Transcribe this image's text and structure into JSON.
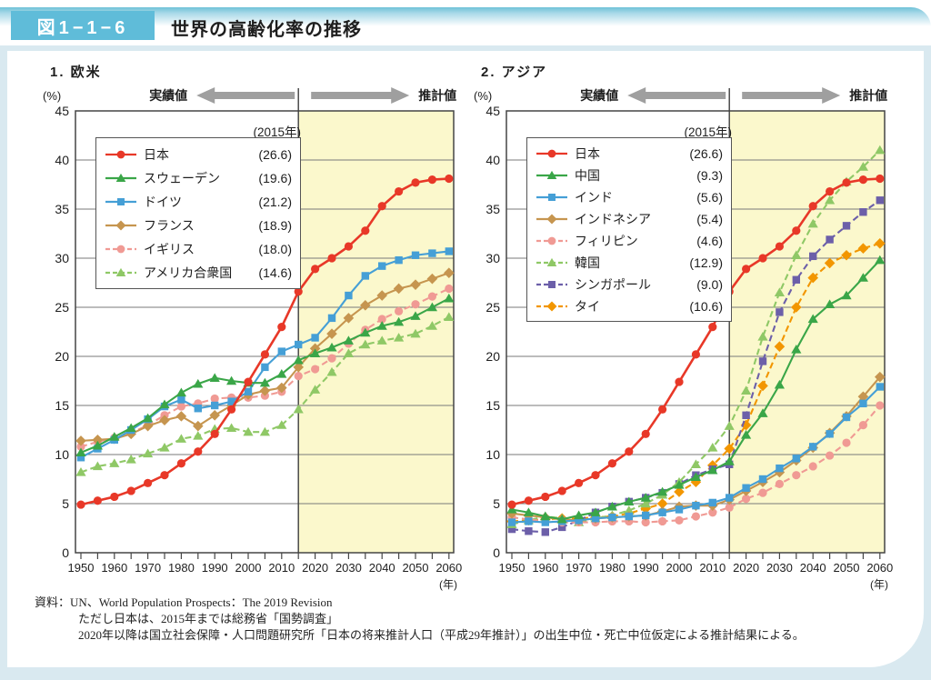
{
  "figure": {
    "label": "図1−1−6",
    "title": "世界の高齢化率の推移"
  },
  "annotations": {
    "actual_label": "実績値",
    "projected_label": "推計値",
    "y_unit": "(%)",
    "x_unit": "(年)",
    "legend_year": "(2015年)"
  },
  "colors": {
    "accent_blue": "#5fbcd9",
    "page_background": "#d9e9f0",
    "projection_fill": "#fbf8cc",
    "gridline": "#7a7a7a",
    "plot_border": "#454545",
    "arrow": "#9f9f9f"
  },
  "source": {
    "lines": [
      "資料：UN、World Population Prospects：The 2019 Revision",
      "ただし日本は、2015年までは総務省「国勢調査」",
      "2020年以降は国立社会保障・人口問題研究所「日本の将来推計人口（平成29年推計）」の出生中位・死亡中位仮定による推計結果による。"
    ]
  },
  "chart_data": [
    {
      "type": "line",
      "title": "1. 欧米",
      "x": [
        1950,
        1955,
        1960,
        1965,
        1970,
        1975,
        1980,
        1985,
        1990,
        1995,
        2000,
        2005,
        2010,
        2015,
        2020,
        2025,
        2030,
        2035,
        2040,
        2045,
        2050,
        2055,
        2060
      ],
      "x_tick_labels": [
        "1950",
        "1960",
        "1970",
        "1980",
        "1990",
        "2000",
        "2010",
        "2020",
        "2030",
        "2040",
        "2050",
        "2060"
      ],
      "ylim": [
        0,
        45
      ],
      "y_ticks": [
        0,
        5,
        10,
        15,
        20,
        25,
        30,
        35,
        40,
        45
      ],
      "divider_year": 2015,
      "grid": true,
      "legend_position": "upper-left",
      "series": [
        {
          "name": "日本",
          "value_label": "(26.6)",
          "color": "#e83828",
          "dash": false,
          "marker": "circle",
          "values": [
            4.9,
            5.3,
            5.7,
            6.3,
            7.1,
            7.9,
            9.1,
            10.3,
            12.1,
            14.6,
            17.4,
            20.2,
            23.0,
            26.6,
            28.9,
            30.0,
            31.2,
            32.8,
            35.3,
            36.8,
            37.7,
            38.0,
            38.1
          ]
        },
        {
          "name": "スウェーデン",
          "value_label": "(19.6)",
          "color": "#3aa648",
          "dash": false,
          "marker": "triangle",
          "values": [
            10.2,
            10.9,
            11.8,
            12.7,
            13.7,
            15.1,
            16.3,
            17.2,
            17.8,
            17.5,
            17.3,
            17.3,
            18.2,
            19.6,
            20.3,
            20.9,
            21.6,
            22.4,
            23.1,
            23.5,
            24.1,
            25.0,
            25.9
          ]
        },
        {
          "name": "ドイツ",
          "value_label": "(21.2)",
          "color": "#459fd6",
          "dash": false,
          "marker": "square",
          "values": [
            9.7,
            10.6,
            11.5,
            12.5,
            13.6,
            14.9,
            15.6,
            14.7,
            15.0,
            15.4,
            16.4,
            18.9,
            20.5,
            21.2,
            21.9,
            23.9,
            26.2,
            28.2,
            29.2,
            29.8,
            30.3,
            30.5,
            30.7
          ]
        },
        {
          "name": "フランス",
          "value_label": "(18.9)",
          "color": "#c6954f",
          "dash": false,
          "marker": "diamond",
          "values": [
            11.4,
            11.5,
            11.6,
            12.1,
            12.9,
            13.5,
            13.9,
            12.9,
            14.0,
            15.0,
            16.1,
            16.5,
            16.8,
            18.9,
            20.8,
            22.3,
            23.9,
            25.2,
            26.2,
            26.9,
            27.3,
            27.9,
            28.5
          ]
        },
        {
          "name": "イギリス",
          "value_label": "(18.0)",
          "color": "#f09a94",
          "dash": true,
          "marker": "circle",
          "values": [
            10.8,
            11.3,
            11.7,
            12.2,
            13.0,
            14.0,
            14.9,
            15.2,
            15.7,
            15.8,
            15.8,
            16.0,
            16.4,
            18.0,
            18.7,
            19.8,
            21.3,
            22.7,
            23.8,
            24.6,
            25.3,
            26.1,
            26.9
          ]
        },
        {
          "name": "アメリカ合衆国",
          "value_label": "(14.6)",
          "color": "#8fc866",
          "dash": true,
          "marker": "triangle",
          "values": [
            8.2,
            8.8,
            9.1,
            9.5,
            10.1,
            10.7,
            11.6,
            11.9,
            12.6,
            12.7,
            12.3,
            12.3,
            13.0,
            14.6,
            16.6,
            18.4,
            20.3,
            21.2,
            21.6,
            21.9,
            22.3,
            23.1,
            24.0
          ]
        }
      ]
    },
    {
      "type": "line",
      "title": "2. アジア",
      "x": [
        1950,
        1955,
        1960,
        1965,
        1970,
        1975,
        1980,
        1985,
        1990,
        1995,
        2000,
        2005,
        2010,
        2015,
        2020,
        2025,
        2030,
        2035,
        2040,
        2045,
        2050,
        2055,
        2060
      ],
      "x_tick_labels": [
        "1950",
        "1960",
        "1970",
        "1980",
        "1990",
        "2000",
        "2010",
        "2020",
        "2030",
        "2040",
        "2050",
        "2060"
      ],
      "ylim": [
        0,
        45
      ],
      "y_ticks": [
        0,
        5,
        10,
        15,
        20,
        25,
        30,
        35,
        40,
        45
      ],
      "divider_year": 2015,
      "grid": true,
      "legend_position": "upper-left",
      "series": [
        {
          "name": "日本",
          "value_label": "(26.6)",
          "color": "#e83828",
          "dash": false,
          "marker": "circle",
          "values": [
            4.9,
            5.3,
            5.7,
            6.3,
            7.1,
            7.9,
            9.1,
            10.3,
            12.1,
            14.6,
            17.4,
            20.2,
            23.0,
            26.6,
            28.9,
            30.0,
            31.2,
            32.8,
            35.3,
            36.8,
            37.7,
            38.0,
            38.1
          ]
        },
        {
          "name": "中国",
          "value_label": "(9.3)",
          "color": "#3aa648",
          "dash": false,
          "marker": "triangle",
          "values": [
            4.4,
            4.1,
            3.7,
            3.4,
            3.8,
            4.1,
            4.7,
            5.2,
            5.6,
            6.2,
            6.9,
            7.7,
            8.4,
            9.3,
            12.0,
            14.2,
            17.1,
            20.7,
            23.8,
            25.3,
            26.2,
            28.0,
            29.8
          ]
        },
        {
          "name": "インド",
          "value_label": "(5.6)",
          "color": "#459fd6",
          "dash": false,
          "marker": "square",
          "values": [
            3.1,
            3.2,
            3.1,
            3.2,
            3.3,
            3.5,
            3.6,
            3.7,
            3.8,
            4.1,
            4.4,
            4.8,
            5.1,
            5.6,
            6.6,
            7.5,
            8.6,
            9.6,
            10.8,
            12.1,
            13.8,
            15.2,
            16.9
          ]
        },
        {
          "name": "インドネシア",
          "value_label": "(5.4)",
          "color": "#c6954f",
          "dash": false,
          "marker": "diamond",
          "values": [
            4.0,
            3.8,
            3.6,
            3.4,
            3.3,
            3.5,
            3.6,
            3.7,
            3.8,
            4.2,
            4.7,
            4.8,
            4.8,
            5.4,
            6.3,
            7.2,
            8.2,
            9.4,
            10.7,
            12.2,
            13.9,
            15.9,
            17.9
          ]
        },
        {
          "name": "フィリピン",
          "value_label": "(4.6)",
          "color": "#f09a94",
          "dash": true,
          "marker": "circle",
          "values": [
            3.6,
            3.4,
            3.2,
            3.1,
            3.1,
            3.1,
            3.2,
            3.2,
            3.1,
            3.2,
            3.3,
            3.7,
            4.1,
            4.6,
            5.5,
            6.1,
            7.0,
            7.9,
            8.8,
            9.9,
            11.2,
            13.0,
            15.0
          ]
        },
        {
          "name": "韓国",
          "value_label": "(12.9)",
          "color": "#8fc866",
          "dash": true,
          "marker": "triangle",
          "values": [
            2.9,
            3.3,
            3.7,
            3.5,
            3.1,
            3.5,
            3.8,
            4.3,
            5.0,
            5.9,
            7.2,
            9.0,
            10.7,
            12.9,
            16.5,
            22.0,
            26.5,
            30.3,
            33.5,
            35.9,
            37.8,
            39.3,
            41.0
          ]
        },
        {
          "name": "シンガポール",
          "value_label": "(9.0)",
          "color": "#6c5fa9",
          "dash": true,
          "marker": "square",
          "values": [
            2.4,
            2.2,
            2.1,
            2.6,
            3.3,
            4.1,
            4.7,
            5.2,
            5.6,
            6.1,
            7.0,
            7.9,
            8.5,
            9.0,
            14.0,
            19.5,
            24.5,
            27.8,
            30.2,
            31.9,
            33.3,
            34.7,
            35.9
          ]
        },
        {
          "name": "タイ",
          "value_label": "(10.6)",
          "color": "#f29600",
          "dash": true,
          "marker": "diamond",
          "values": [
            3.2,
            3.3,
            3.4,
            3.5,
            3.5,
            3.6,
            3.7,
            4.0,
            4.5,
            5.0,
            6.2,
            7.2,
            8.9,
            10.6,
            13.0,
            17.0,
            21.0,
            25.0,
            28.0,
            29.5,
            30.3,
            31.0,
            31.5
          ]
        }
      ]
    }
  ]
}
